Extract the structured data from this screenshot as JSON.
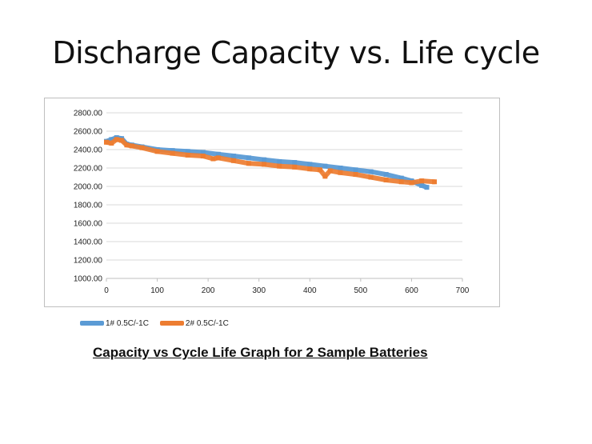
{
  "slide": {
    "title": "Discharge Capacity vs. Life cycle",
    "caption": "Capacity vs Cycle Life Graph for 2 Sample Batteries"
  },
  "chart_data": {
    "type": "line",
    "title": "",
    "xlabel": "",
    "ylabel": "",
    "xlim": [
      0,
      700
    ],
    "ylim": [
      1000,
      2800
    ],
    "x_ticks": [
      "0",
      "100",
      "200",
      "300",
      "400",
      "500",
      "600",
      "700"
    ],
    "y_ticks": [
      "1000.00",
      "1200.00",
      "1400.00",
      "1600.00",
      "1800.00",
      "2000.00",
      "2200.00",
      "2400.00",
      "2600.00",
      "2800.00"
    ],
    "grid": "horizontal",
    "legend_position": "bottom-left",
    "series": [
      {
        "name": "1# 0.5C/-1C",
        "color": "#5b9bd5",
        "x": [
          0,
          10,
          20,
          30,
          40,
          50,
          70,
          100,
          130,
          160,
          190,
          220,
          250,
          280,
          310,
          340,
          370,
          400,
          430,
          460,
          490,
          520,
          550,
          580,
          600,
          620,
          630
        ],
        "y": [
          2490,
          2510,
          2530,
          2520,
          2460,
          2450,
          2430,
          2400,
          2390,
          2380,
          2370,
          2350,
          2330,
          2310,
          2290,
          2270,
          2260,
          2240,
          2220,
          2200,
          2180,
          2160,
          2130,
          2090,
          2060,
          2010,
          1990
        ]
      },
      {
        "name": "2# 0.5C/-1C",
        "color": "#ed7d31",
        "x": [
          0,
          10,
          20,
          30,
          40,
          50,
          70,
          100,
          130,
          160,
          190,
          210,
          220,
          250,
          280,
          310,
          340,
          370,
          400,
          420,
          430,
          440,
          460,
          490,
          520,
          550,
          580,
          600,
          620,
          645
        ],
        "y": [
          2480,
          2470,
          2510,
          2500,
          2450,
          2440,
          2420,
          2380,
          2360,
          2340,
          2330,
          2300,
          2310,
          2280,
          2250,
          2240,
          2220,
          2210,
          2190,
          2180,
          2110,
          2170,
          2150,
          2130,
          2100,
          2070,
          2050,
          2040,
          2060,
          2050
        ]
      }
    ]
  }
}
